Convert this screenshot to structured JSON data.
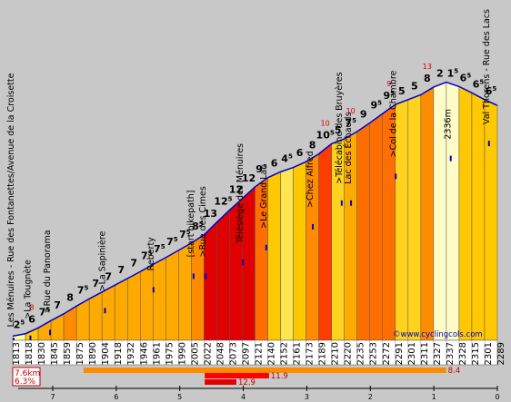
{
  "chart_data": {
    "type": "area",
    "title": "",
    "url": "©www.cyclingcols.com",
    "summary": {
      "distance": "7.6km",
      "avg_gradient": "6.3%"
    },
    "distance_ticks": [
      "7",
      "6",
      "5",
      "4",
      "3",
      "2",
      "1",
      "0"
    ],
    "summit": "2336m",
    "elevations": [
      "1813",
      "1818",
      "1830",
      "1845",
      "1859",
      "1875",
      "1890",
      "1904",
      "1918",
      "1932",
      "1946",
      "1961",
      "1975",
      "1990",
      "2005",
      "2022",
      "2048",
      "2073",
      "2097",
      "2121",
      "2140",
      "2152",
      "2161",
      "2173",
      "2189",
      "2210",
      "2220",
      "2235",
      "2253",
      "2272",
      "2291",
      "2301",
      "2311",
      "2327",
      "2337",
      "2328",
      "2315",
      "2301",
      "2289"
    ],
    "gradients": [
      "2.5",
      "6",
      "7.5",
      "7",
      "8",
      "7.5",
      "7",
      "7",
      "7",
      "7",
      "7.5",
      "7.5",
      "7.5",
      "7.5",
      "8.5",
      "13",
      "12.5",
      "12",
      "12",
      "9.5",
      "6",
      "4.5",
      "6",
      "8",
      "10.5",
      "5",
      "7.5",
      "9",
      "9.5",
      "9.5",
      "5",
      "5",
      "8",
      "2",
      "1.5",
      "6.5",
      "6.5",
      "6.5"
    ],
    "gradient_peaks": [
      {
        "segment": 1,
        "value": "8"
      },
      {
        "segment": 24,
        "value": "10"
      },
      {
        "segment": 26,
        "value": "10"
      },
      {
        "segment": 29,
        "value": "9"
      },
      {
        "segment": 32,
        "value": "13"
      }
    ],
    "locations": [
      {
        "km": 0.05,
        "label": "Les Ménuires - Rue des Fontanettes/Avenue de la Croisette"
      },
      {
        "km": 0.95,
        "label": ">La Tougnète"
      },
      {
        "km": 2.0,
        "label": ">Rue du Panorama"
      },
      {
        "km": 4.95,
        "label": ">La Sapinière"
      },
      {
        "km": 7.55,
        "label": "Reberty"
      },
      {
        "km": 9.7,
        "label": "[start bikepath]"
      },
      {
        "km": 10.35,
        "label": ">Rue des Cimes"
      },
      {
        "km": 12.35,
        "label": "Télésiège des Ménuires"
      },
      {
        "km": 13.6,
        "label": ">Le Grand Lac"
      },
      {
        "km": 16.1,
        "label": ">Chez Alfred"
      },
      {
        "km": 17.65,
        "label": ">Télécabine des Bruyères"
      },
      {
        "km": 18.15,
        "label": "Lac des Échauds"
      },
      {
        "km": 20.55,
        "label": ">Col de la Chambre"
      },
      {
        "km": 23.5,
        "label": "2336m"
      },
      {
        "km": 25.55,
        "label": "Val Thorens - Rue des Lacs"
      }
    ],
    "bars": [
      {
        "from_km": 3.8,
        "to_km": 23.25,
        "value": "8.4",
        "color": "#ff8c00"
      },
      {
        "from_km": 10.3,
        "to_km": 13.75,
        "value": "11.9",
        "color": "#ff0000"
      },
      {
        "from_km": 10.3,
        "to_km": 12.0,
        "value": "12.9",
        "color": "#e00000"
      }
    ]
  }
}
